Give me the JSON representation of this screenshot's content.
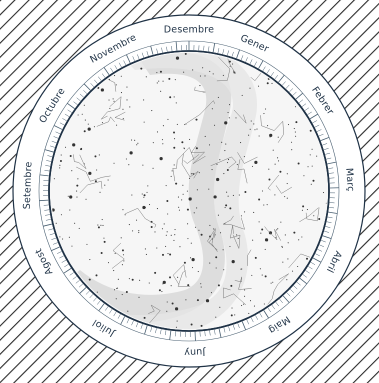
{
  "title": "",
  "months": [
    {
      "name": "Gener",
      "angle": 24
    },
    {
      "name": "Febrer",
      "angle": 56
    },
    {
      "name": "Març",
      "angle": 86
    },
    {
      "name": "Abril",
      "angle": 116
    },
    {
      "name": "Maig",
      "angle": 146
    },
    {
      "name": "Juny",
      "angle": 178
    },
    {
      "name": "Juliol",
      "angle": 212
    },
    {
      "name": "Agost",
      "angle": 244
    },
    {
      "name": "Setembre",
      "angle": 272
    },
    {
      "name": "Octubre",
      "angle": 302
    },
    {
      "name": "Novembre",
      "angle": 332
    },
    {
      "name": "Desembre",
      "angle": 0
    }
  ],
  "colors": {
    "ring": "#1f3246",
    "milky_way": "#d9d9d9",
    "sky": "#f5f5f5",
    "hatch": "#2a2a2a"
  }
}
